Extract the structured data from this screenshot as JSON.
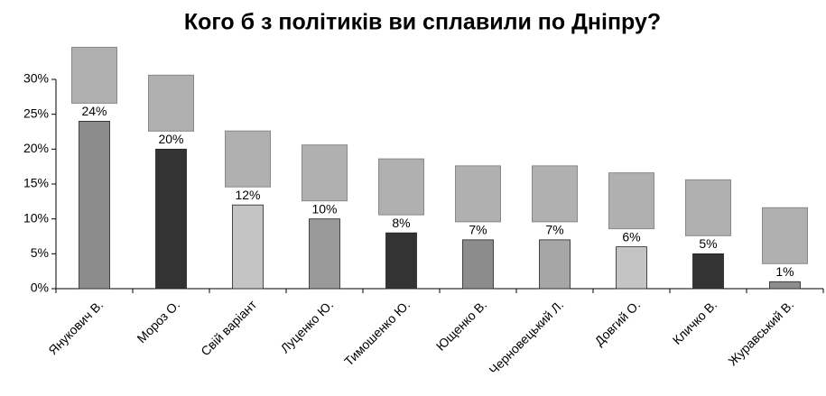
{
  "chart_data": {
    "type": "bar",
    "title": "Кого б з політиків ви сплавили по Дніпру?",
    "categories": [
      "Янукович В.",
      "Мороз О.",
      "Свій варіант",
      "Луценко Ю.",
      "Тимошенко Ю.",
      "Ющенко В.",
      "Черновецький Л.",
      "Довгий О.",
      "Кличко В.",
      "Журавський В."
    ],
    "values": [
      24,
      20,
      12,
      10,
      8,
      7,
      7,
      6,
      5,
      1
    ],
    "value_labels": [
      "24%",
      "20%",
      "12%",
      "10%",
      "8%",
      "7%",
      "7%",
      "6%",
      "5%",
      "1%"
    ],
    "colors": [
      "#8c8c8c",
      "#333333",
      "#c4c4c4",
      "#999999",
      "#333333",
      "#8c8c8c",
      "#a6a6a6",
      "#c4c4c4",
      "#333333",
      "#8c8c8c"
    ],
    "ylim": [
      0,
      30
    ],
    "yticks": [
      {
        "value": 0,
        "label": "0%"
      },
      {
        "value": 5,
        "label": "5%"
      },
      {
        "value": 10,
        "label": "10%"
      },
      {
        "value": 15,
        "label": "15%"
      },
      {
        "value": 20,
        "label": "20%"
      },
      {
        "value": 25,
        "label": "25%"
      },
      {
        "value": 30,
        "label": "30%"
      }
    ]
  }
}
